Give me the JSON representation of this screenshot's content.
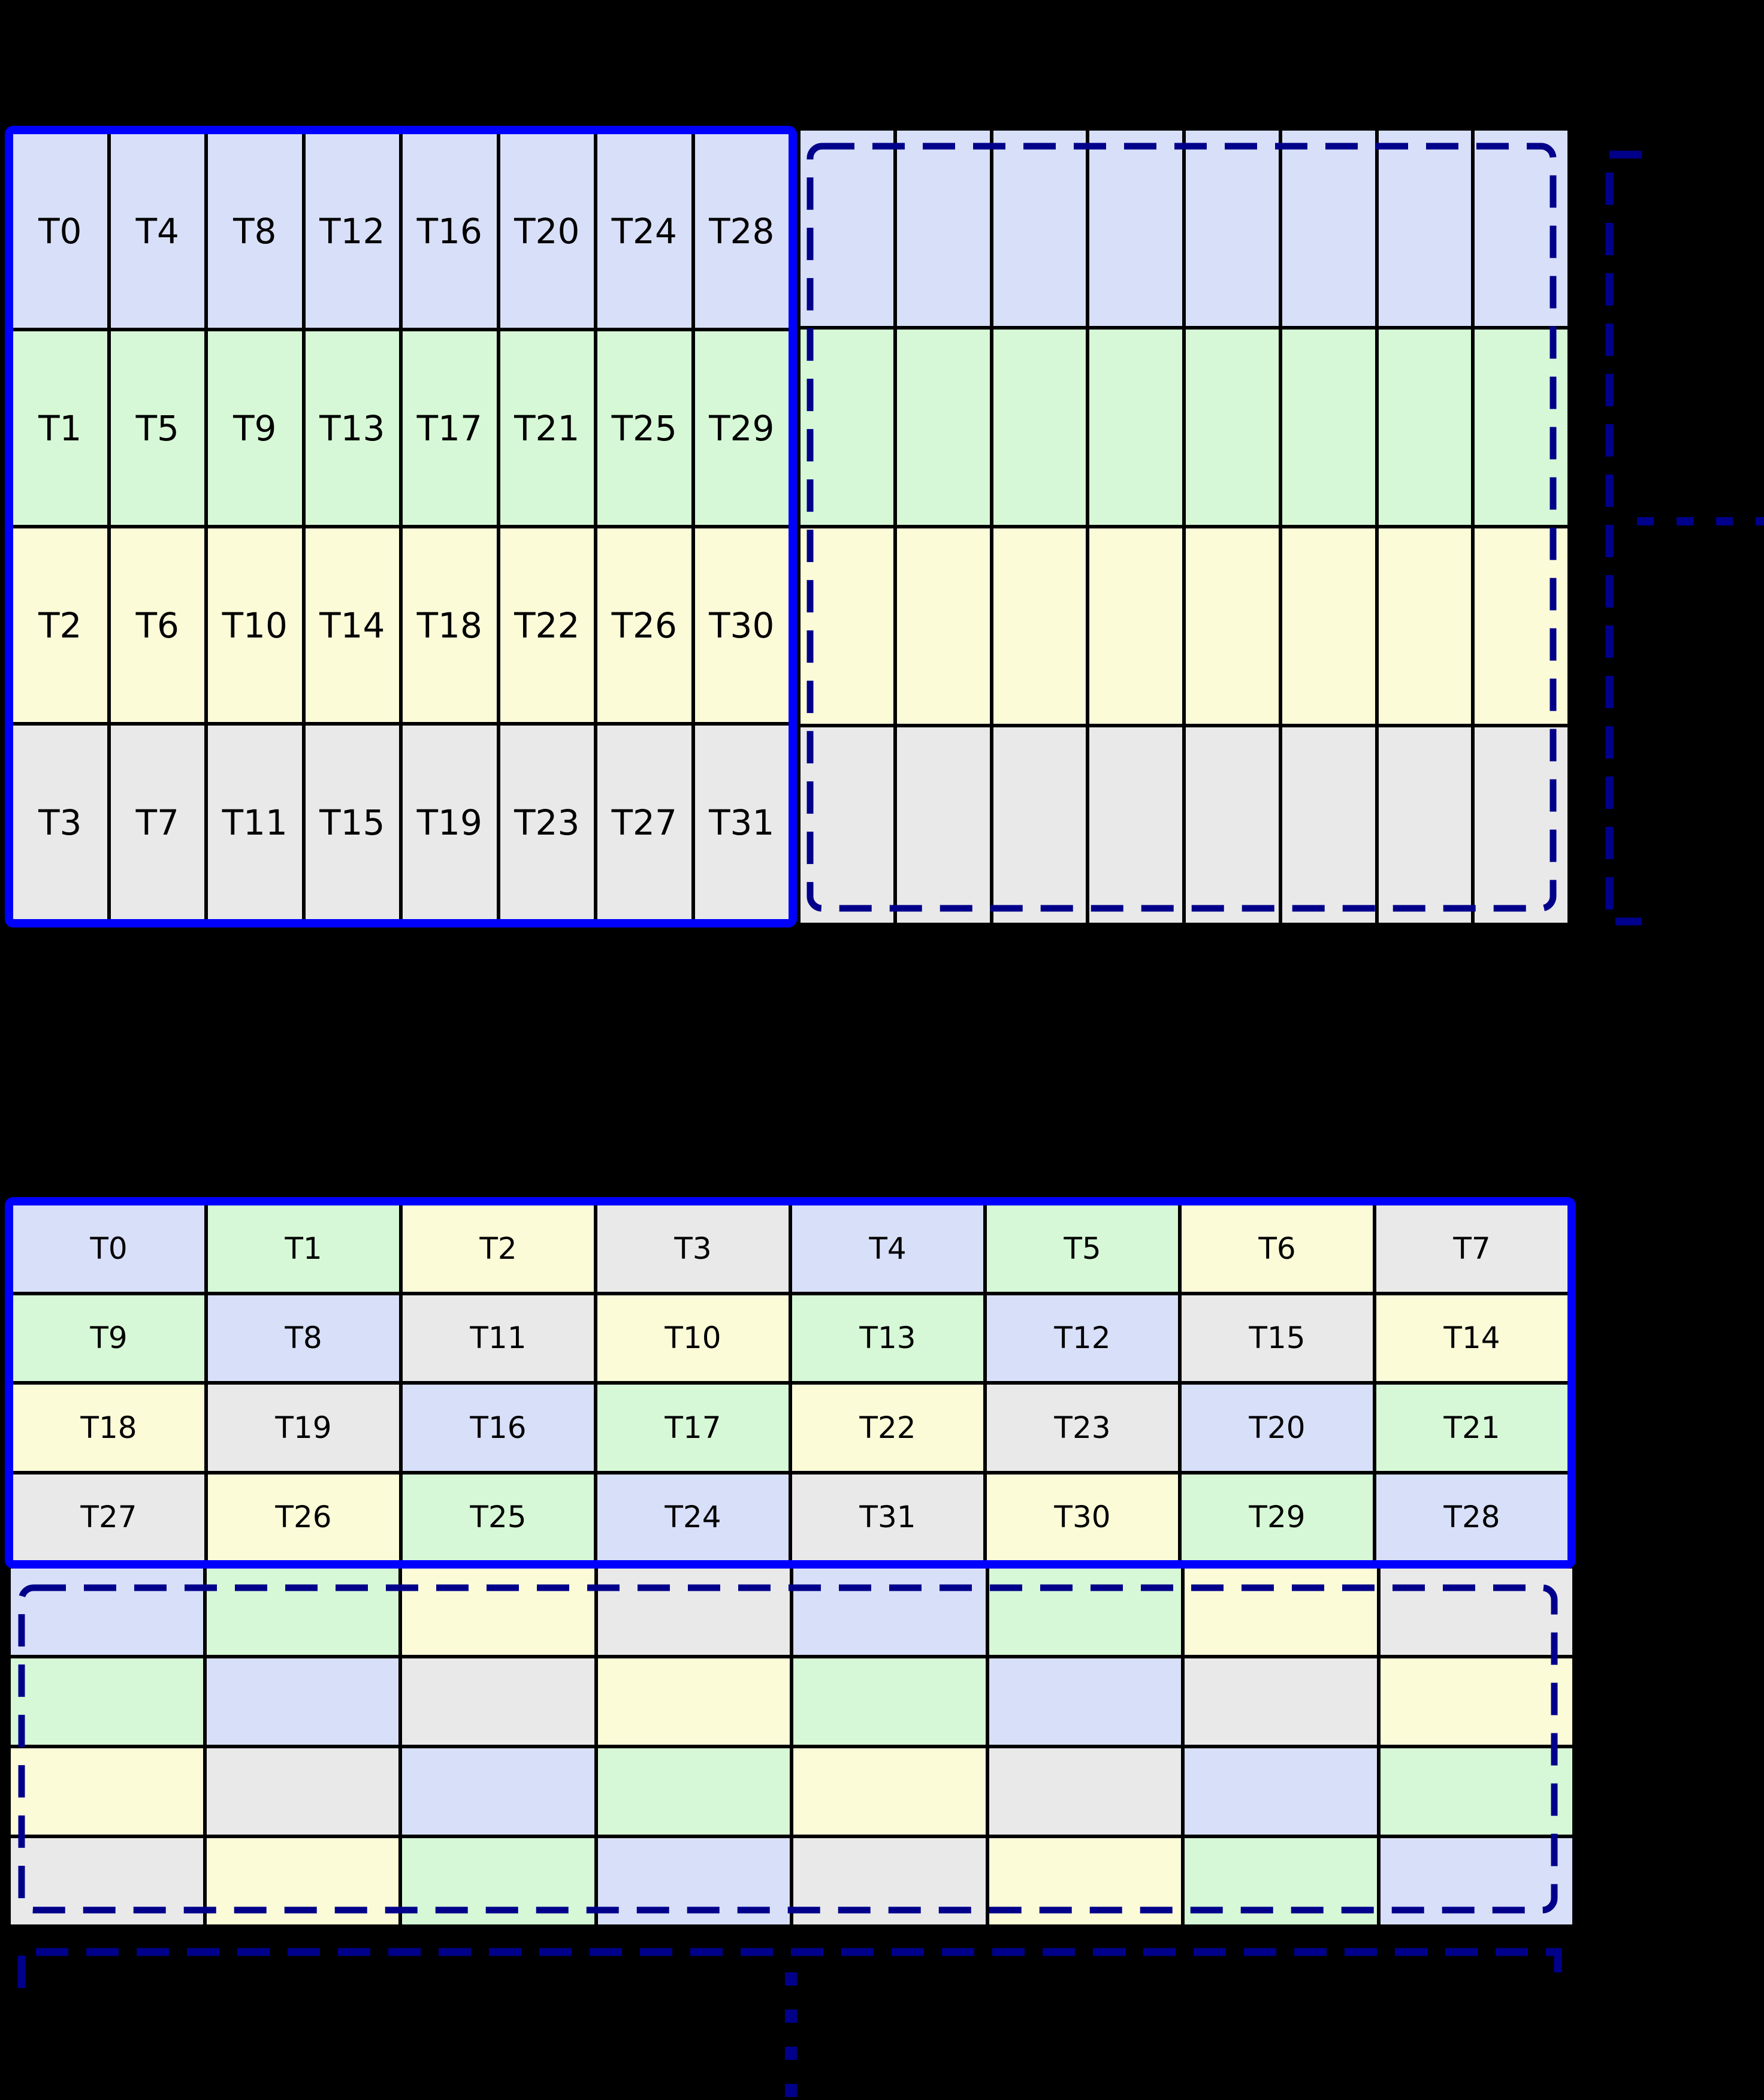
{
  "palette": {
    "row_blue": "#D8DFF8",
    "row_green": "#D6F8D6",
    "row_yellow": "#FBFBD8",
    "row_gray": "#E9E9E9",
    "solid_border_blue": "#0000FF",
    "dashed_navy": "#00008B",
    "grid_line_black": "#000000",
    "background_black": "#000000",
    "label_black": "#000000"
  },
  "top_grid": {
    "row_colors": [
      "row_blue",
      "row_green",
      "row_yellow",
      "row_gray"
    ],
    "labeled_rows": [
      [
        "T0",
        "T4",
        "T8",
        "T12",
        "T16",
        "T20",
        "T24",
        "T28"
      ],
      [
        "T1",
        "T5",
        "T9",
        "T13",
        "T17",
        "T21",
        "T25",
        "T29"
      ],
      [
        "T2",
        "T6",
        "T10",
        "T14",
        "T18",
        "T22",
        "T26",
        "T30"
      ],
      [
        "T3",
        "T7",
        "T11",
        "T15",
        "T19",
        "T23",
        "T27",
        "T31"
      ]
    ],
    "ghost_block_columns": 8,
    "ghost_block_rows": 4
  },
  "bottom_grid": {
    "labeled_rows": [
      [
        {
          "label": "T0",
          "color": "row_blue"
        },
        {
          "label": "T1",
          "color": "row_green"
        },
        {
          "label": "T2",
          "color": "row_yellow"
        },
        {
          "label": "T3",
          "color": "row_gray"
        },
        {
          "label": "T4",
          "color": "row_blue"
        },
        {
          "label": "T5",
          "color": "row_green"
        },
        {
          "label": "T6",
          "color": "row_yellow"
        },
        {
          "label": "T7",
          "color": "row_gray"
        }
      ],
      [
        {
          "label": "T9",
          "color": "row_green"
        },
        {
          "label": "T8",
          "color": "row_blue"
        },
        {
          "label": "T11",
          "color": "row_gray"
        },
        {
          "label": "T10",
          "color": "row_yellow"
        },
        {
          "label": "T13",
          "color": "row_green"
        },
        {
          "label": "T12",
          "color": "row_blue"
        },
        {
          "label": "T15",
          "color": "row_gray"
        },
        {
          "label": "T14",
          "color": "row_yellow"
        }
      ],
      [
        {
          "label": "T18",
          "color": "row_yellow"
        },
        {
          "label": "T19",
          "color": "row_gray"
        },
        {
          "label": "T16",
          "color": "row_blue"
        },
        {
          "label": "T17",
          "color": "row_green"
        },
        {
          "label": "T22",
          "color": "row_yellow"
        },
        {
          "label": "T23",
          "color": "row_gray"
        },
        {
          "label": "T20",
          "color": "row_blue"
        },
        {
          "label": "T21",
          "color": "row_green"
        }
      ],
      [
        {
          "label": "T27",
          "color": "row_gray"
        },
        {
          "label": "T26",
          "color": "row_yellow"
        },
        {
          "label": "T25",
          "color": "row_green"
        },
        {
          "label": "T24",
          "color": "row_blue"
        },
        {
          "label": "T31",
          "color": "row_gray"
        },
        {
          "label": "T30",
          "color": "row_yellow"
        },
        {
          "label": "T29",
          "color": "row_green"
        },
        {
          "label": "T28",
          "color": "row_blue"
        }
      ]
    ],
    "ghost_rows_colors": [
      [
        "row_blue",
        "row_green",
        "row_yellow",
        "row_gray",
        "row_blue",
        "row_green",
        "row_yellow",
        "row_gray"
      ],
      [
        "row_green",
        "row_blue",
        "row_gray",
        "row_yellow",
        "row_green",
        "row_blue",
        "row_gray",
        "row_yellow"
      ],
      [
        "row_yellow",
        "row_gray",
        "row_blue",
        "row_green",
        "row_yellow",
        "row_gray",
        "row_blue",
        "row_green"
      ],
      [
        "row_gray",
        "row_yellow",
        "row_green",
        "row_blue",
        "row_gray",
        "row_yellow",
        "row_green",
        "row_blue"
      ]
    ]
  }
}
